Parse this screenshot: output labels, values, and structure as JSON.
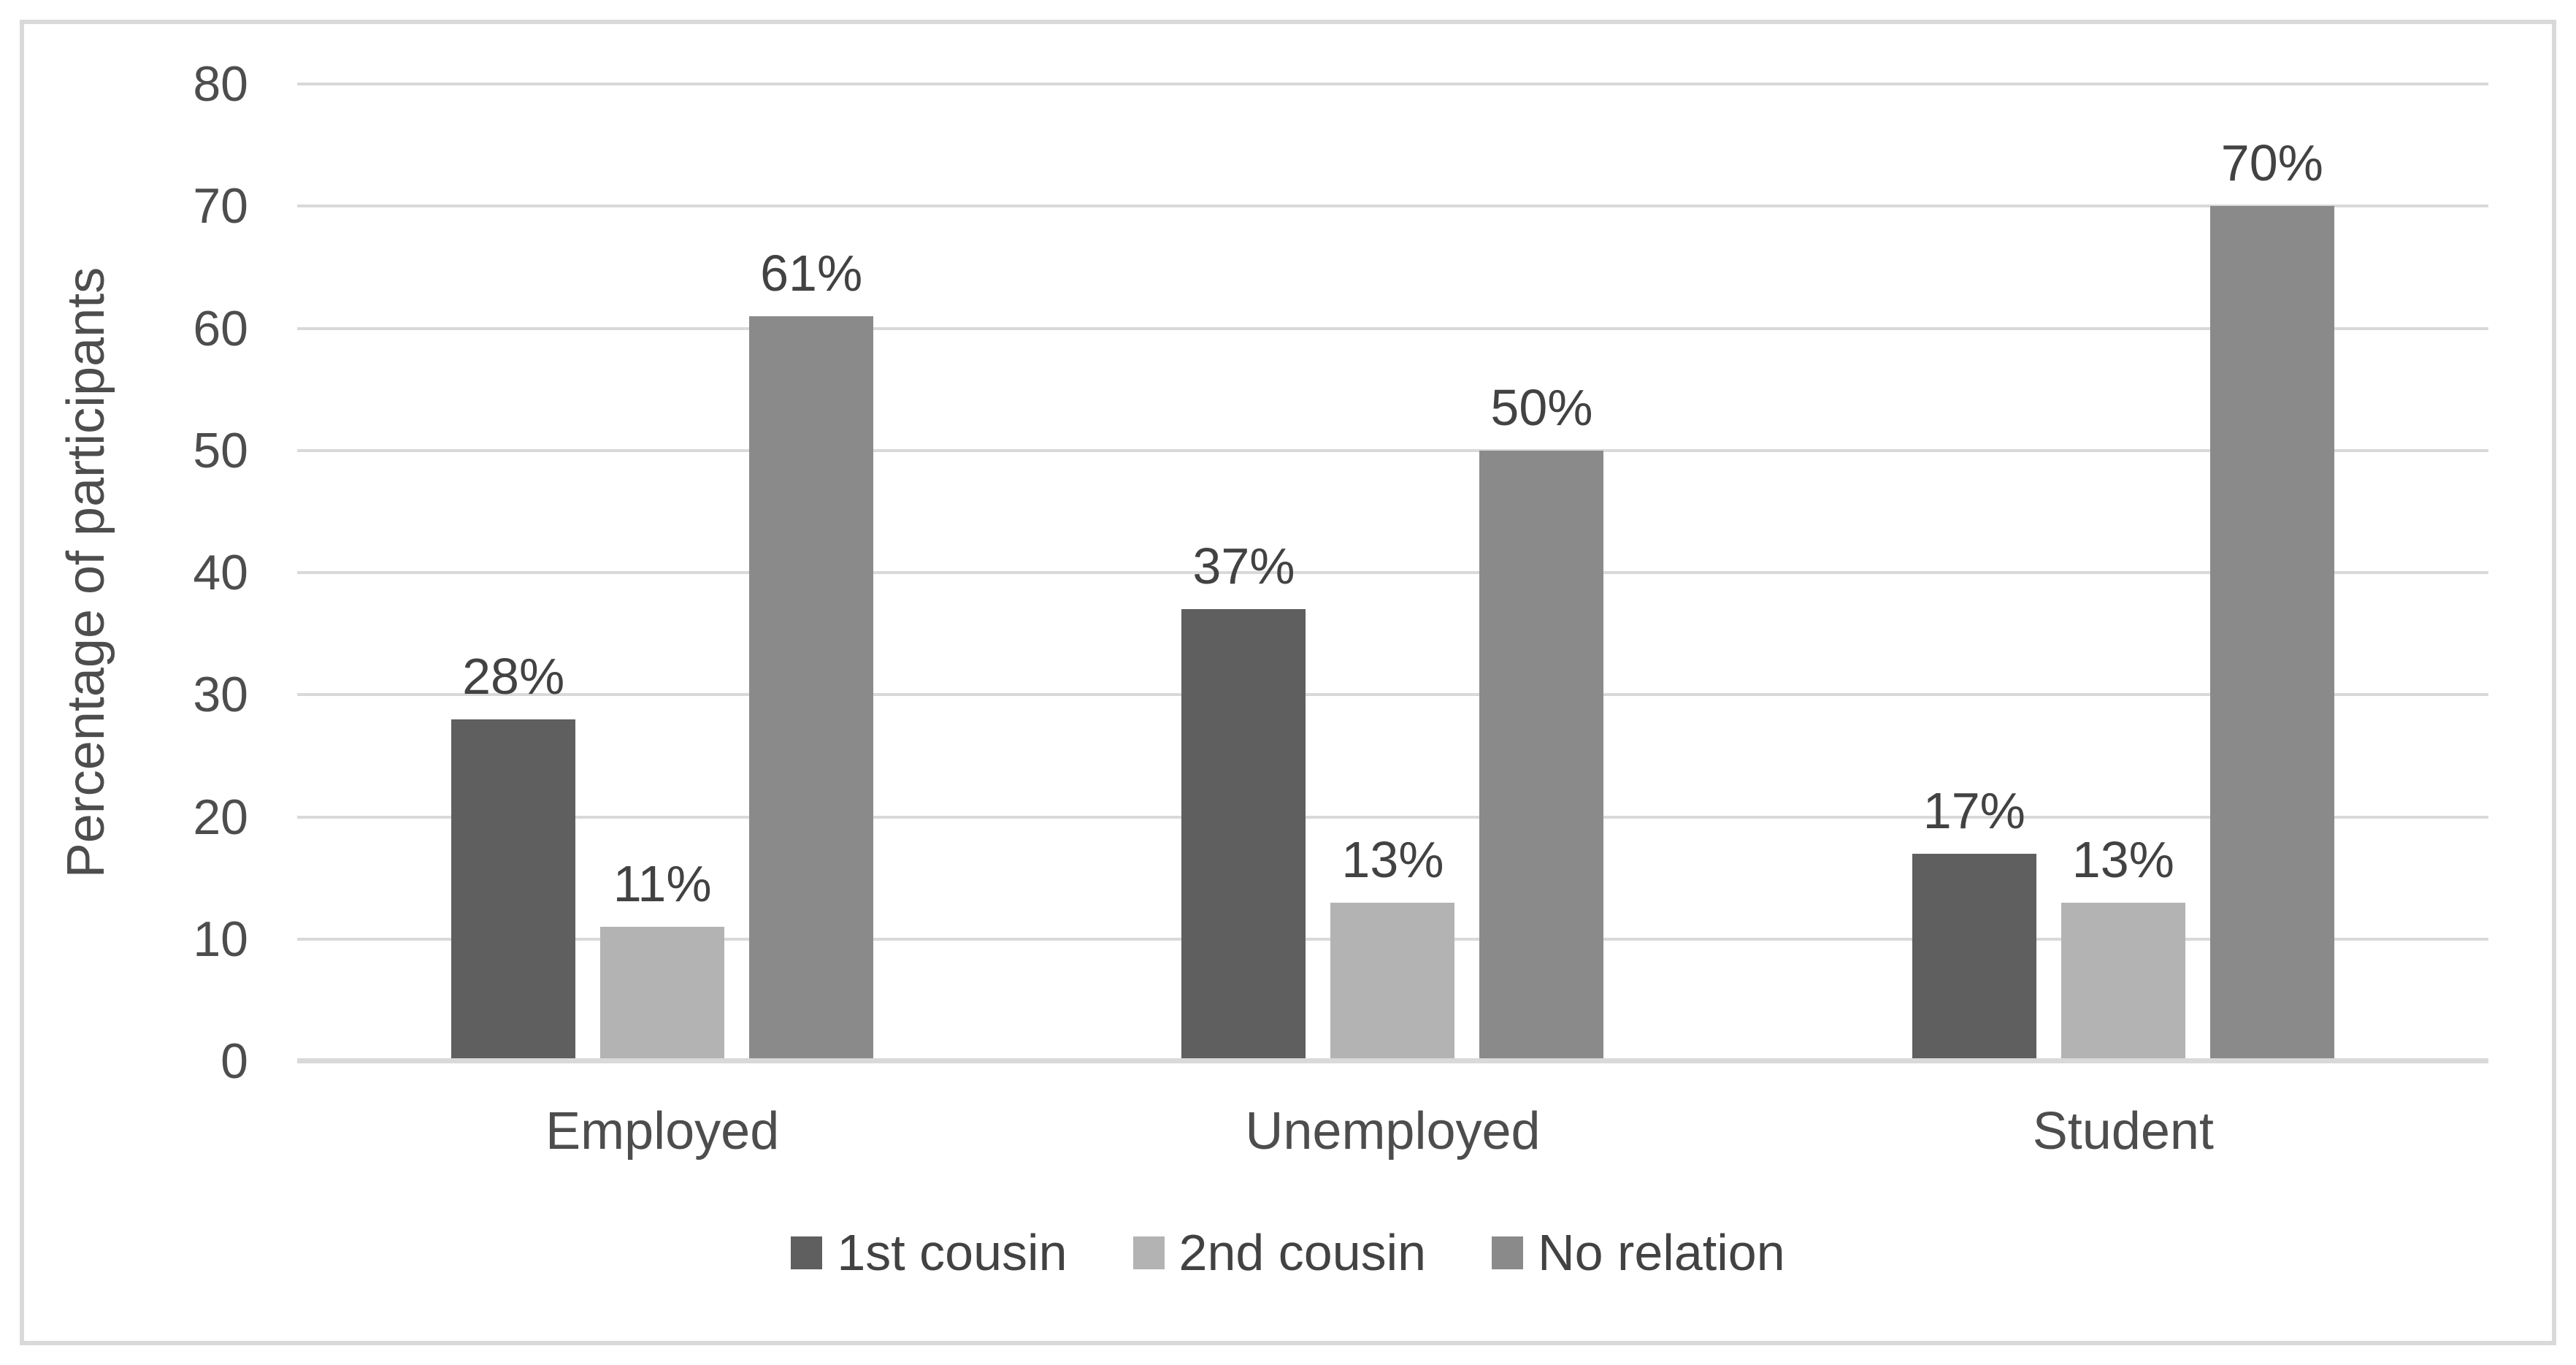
{
  "chart_data": {
    "type": "bar",
    "title": "",
    "xlabel": "",
    "ylabel": "Percentage of participants",
    "categories": [
      "Employed",
      "Unemployed",
      "Student"
    ],
    "series": [
      {
        "name": "1st cousin",
        "color": "#5f5f5f",
        "values": [
          28,
          37,
          17
        ],
        "labels": [
          "28%",
          "37%",
          "17%"
        ]
      },
      {
        "name": "2nd cousin",
        "color": "#b3b3b3",
        "values": [
          11,
          13,
          13
        ],
        "labels": [
          "11%",
          "13%",
          "13%"
        ]
      },
      {
        "name": "No relation",
        "color": "#8a8a8a",
        "values": [
          61,
          50,
          70
        ],
        "labels": [
          "61%",
          "50%",
          "70%"
        ]
      }
    ],
    "ylim": [
      0,
      80
    ],
    "yticks": [
      "0",
      "10",
      "20",
      "30",
      "40",
      "50",
      "60",
      "70",
      "80"
    ],
    "grid": true,
    "legend_position": "bottom",
    "colors": {
      "gridline": "#d9d9d9",
      "axis_line": "#d9d9d9",
      "tick_text": "#4d4d4d",
      "label_text": "#424242",
      "border": "#d9d9d9",
      "background": "#ffffff"
    }
  }
}
